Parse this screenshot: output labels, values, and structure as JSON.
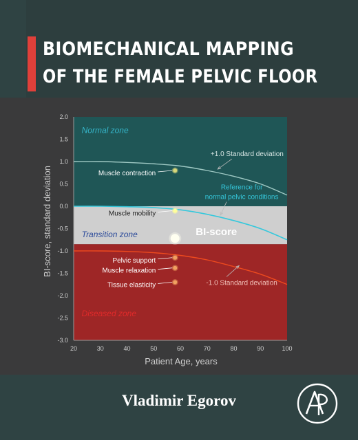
{
  "cover": {
    "title_line1": "BIOMECHANICAL MAPPING",
    "title_line2": "OF THE FEMALE PELVIC FLOOR",
    "author": "Vladimir Egorov",
    "publisher_logo_icon": "elsevier-ap-logo-icon",
    "accent_color": "#e0403a",
    "teal_color": "#2d3e3e"
  },
  "chart_data": {
    "type": "line",
    "xlabel": "Patient Age, years",
    "ylabel": "BI-score, standard deviation",
    "xlim": [
      20,
      100
    ],
    "ylim": [
      -3.0,
      2.0
    ],
    "x_ticks": [
      "20",
      "30",
      "40",
      "50",
      "60",
      "70",
      "80",
      "90",
      "100"
    ],
    "y_ticks": [
      "2.0",
      "1.5",
      "1.0",
      "0.5",
      "0.0",
      "-0.5",
      "-1.0",
      "-1.5",
      "-2.0",
      "-2.5",
      "-3.0"
    ],
    "zones": [
      {
        "label": "Normal zone",
        "y_from": 2.0,
        "y_to": 0.0,
        "color": "#1f5656",
        "label_color": "#35b5c9"
      },
      {
        "label": "Transition zone",
        "y_from": 0.0,
        "y_to": -0.85,
        "color": "#cfcfcf",
        "label_color": "#2b4a9a"
      },
      {
        "label": "Diseased zone",
        "y_from": -0.85,
        "y_to": -3.0,
        "color": "#9e2626",
        "label_color": "#e02a2a"
      }
    ],
    "series": [
      {
        "name": "+1.0 Standard deviation",
        "color": "#9fc9c4",
        "x": [
          20,
          30,
          40,
          50,
          60,
          70,
          80,
          90,
          100
        ],
        "y": [
          1.0,
          1.0,
          0.98,
          0.95,
          0.9,
          0.8,
          0.67,
          0.5,
          0.25
        ]
      },
      {
        "name": "Reference for normal pelvic conditions",
        "color": "#35c8dc",
        "x": [
          20,
          30,
          40,
          50,
          60,
          70,
          80,
          90,
          100
        ],
        "y": [
          0.0,
          0.0,
          -0.01,
          -0.03,
          -0.08,
          -0.18,
          -0.32,
          -0.5,
          -0.75
        ]
      },
      {
        "name": "-1.0 Standard deviation",
        "color": "#ee4a1e",
        "x": [
          20,
          30,
          40,
          50,
          60,
          70,
          80,
          90,
          100
        ],
        "y": [
          -1.0,
          -1.0,
          -1.01,
          -1.04,
          -1.1,
          -1.2,
          -1.35,
          -1.52,
          -1.75
        ]
      }
    ],
    "annotations": [
      {
        "text": "+1.0 Standard deviation",
        "anchor_x": 74,
        "anchor_y": 0.83,
        "text_x": 85,
        "text_y": 1.12,
        "color": "#d8e6e4"
      },
      {
        "text": "Reference for",
        "text_x": 83,
        "text_y": 0.38,
        "color": "#35c8dc"
      },
      {
        "text": "normal pelvic conditions",
        "anchor_x": 75,
        "anchor_y": -0.2,
        "text_x": 83,
        "text_y": 0.16,
        "color": "#35c8dc"
      },
      {
        "text": "-1.0 Standard deviation",
        "anchor_x": 82,
        "anchor_y": -1.33,
        "text_x": 83,
        "text_y": -1.76,
        "color": "#f0c0b8"
      }
    ],
    "points": [
      {
        "label": "Muscle contraction",
        "x": 58,
        "y": 0.8,
        "color": "#d7d77a",
        "label_color": "#ffffff"
      },
      {
        "label": "Muscle mobility",
        "x": 58,
        "y": -0.1,
        "color": "#ffff9a",
        "label_color": "#222222"
      },
      {
        "label": "BI-score",
        "x": 58,
        "y": -0.72,
        "color": "#fffff0",
        "label_color": "#ffffff",
        "big": true
      },
      {
        "label": "Pelvic support",
        "x": 58,
        "y": -1.15,
        "color": "#f0a060",
        "label_color": "#ffffff"
      },
      {
        "label": "Muscle relaxation",
        "x": 58,
        "y": -1.38,
        "color": "#f0a060",
        "label_color": "#ffffff"
      },
      {
        "label": "Tissue elasticity",
        "x": 58,
        "y": -1.7,
        "color": "#f0a060",
        "label_color": "#ffffff"
      }
    ]
  }
}
